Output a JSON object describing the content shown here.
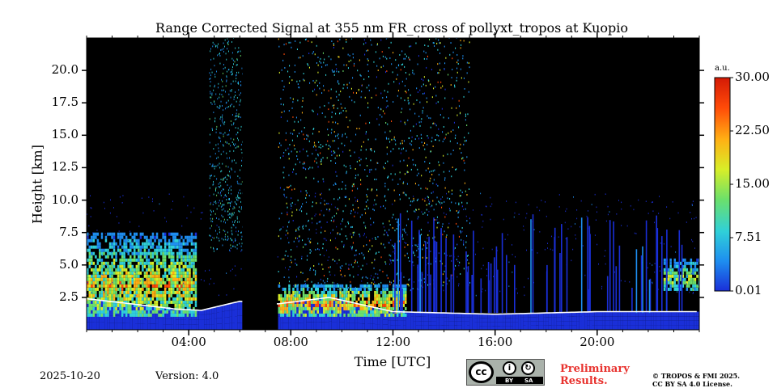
{
  "chart_data": {
    "type": "heatmap",
    "title": "Range Corrected Signal at 355 nm FR_cross of pollyxt_tropos at Kuopio",
    "xlabel": "Time [UTC]",
    "ylabel": "Height [km]",
    "xlim_hours": [
      0,
      24
    ],
    "ylim_km": [
      0,
      22.5
    ],
    "x_ticks": [
      {
        "value": 4,
        "label": "04:00"
      },
      {
        "value": 8,
        "label": "08:00"
      },
      {
        "value": 12,
        "label": "12:00"
      },
      {
        "value": 16,
        "label": "16:00"
      },
      {
        "value": 20,
        "label": "20:00"
      }
    ],
    "y_ticks": [
      {
        "value": 2.5,
        "label": "2.5"
      },
      {
        "value": 5.0,
        "label": "5.0"
      },
      {
        "value": 7.5,
        "label": "7.5"
      },
      {
        "value": 10.0,
        "label": "10.0"
      },
      {
        "value": 12.5,
        "label": "12.5"
      },
      {
        "value": 15.0,
        "label": "15.0"
      },
      {
        "value": 17.5,
        "label": "17.5"
      },
      {
        "value": 20.0,
        "label": "20.0"
      }
    ],
    "colorbar": {
      "unit": "a.u.",
      "range": [
        0.01,
        30.0
      ],
      "ticks": [
        {
          "value": 0.01,
          "label": "0.01"
        },
        {
          "value": 7.51,
          "label": "7.51"
        },
        {
          "value": 15.0,
          "label": "15.00"
        },
        {
          "value": 22.5,
          "label": "22.50"
        },
        {
          "value": 30.0,
          "label": "30.00"
        }
      ],
      "colors": [
        "#1a2fd8",
        "#1e8ef0",
        "#30d0d8",
        "#6ce06a",
        "#d8ee28",
        "#ffb014",
        "#ff4a08",
        "#d41a06"
      ]
    },
    "data_gap_hours": [
      6.1,
      7.45
    ],
    "approx_features": {
      "boundary_layer_top_km": [
        {
          "t": 0.0,
          "h": 2.4
        },
        {
          "t": 3.5,
          "h": 1.6
        },
        {
          "t": 4.5,
          "h": 1.5
        },
        {
          "t": 6.0,
          "h": 2.2
        },
        {
          "t": 7.5,
          "h": 2.0
        },
        {
          "t": 9.5,
          "h": 2.5
        },
        {
          "t": 12.0,
          "h": 1.4
        },
        {
          "t": 16.0,
          "h": 1.2
        },
        {
          "t": 20.0,
          "h": 1.4
        },
        {
          "t": 24.0,
          "h": 1.4
        }
      ],
      "aerosol_plumes": [
        {
          "t_start": 0.0,
          "t_end": 4.3,
          "h_bottom": 1.0,
          "h_top": 7.5,
          "peak_signal": 22
        },
        {
          "t_start": 7.5,
          "t_end": 12.5,
          "h_bottom": 1.0,
          "h_top": 3.5,
          "peak_signal": 25
        },
        {
          "t_start": 22.6,
          "t_end": 24.0,
          "h_bottom": 3.0,
          "h_top": 5.5,
          "peak_signal": 18
        }
      ],
      "high_noise_period_hours": [
        7.5,
        15.0
      ]
    }
  },
  "footer": {
    "date": "2025-10-20",
    "version": "Version: 4.0",
    "preliminary_line1": "Preliminary",
    "preliminary_line2": "Results.",
    "copyright_line1": "© TROPOS & FMI 2025.",
    "copyright_line2": "CC BY SA 4.0 License.",
    "license_badge": {
      "main": "cc",
      "by": "BY",
      "sa": "SA",
      "icons": [
        "cc-icon",
        "person-icon",
        "share-alike-icon"
      ]
    }
  }
}
